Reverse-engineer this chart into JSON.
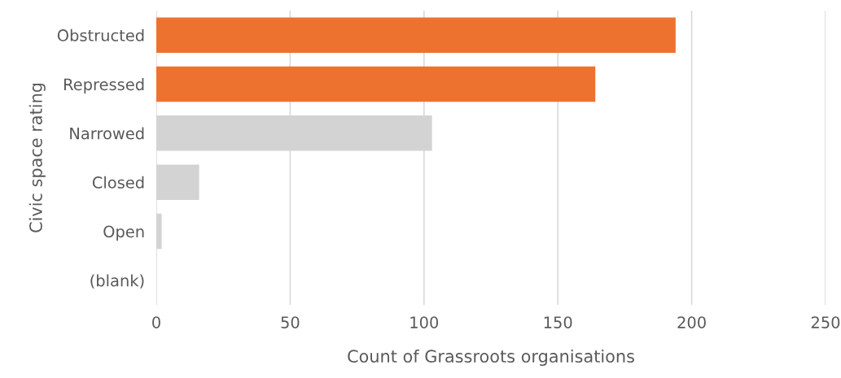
{
  "chart_data": {
    "type": "bar",
    "orientation": "horizontal",
    "xlabel": "Count of Grassroots organisations",
    "ylabel": "Civic space rating",
    "categories": [
      "Obstructed",
      "Repressed",
      "Narrowed",
      "Closed",
      "Open",
      "(blank)"
    ],
    "values": [
      194,
      164,
      103,
      16,
      2,
      0
    ],
    "colors": [
      "#ed7230",
      "#ed7230",
      "#d3d3d3",
      "#d3d3d3",
      "#d3d3d3",
      "#d3d3d3"
    ],
    "xlim": [
      0,
      250
    ],
    "xticks": [
      0,
      50,
      100,
      150,
      200,
      250
    ],
    "grid": "x"
  }
}
